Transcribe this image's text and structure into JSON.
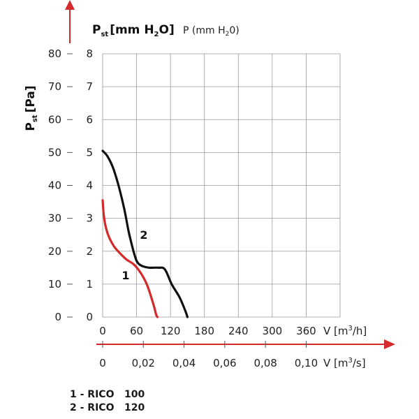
{
  "chart_data": {
    "type": "line",
    "title_pst_mm": "P",
    "title_pst_mm_sub": "st",
    "title_pst_mm_unit": "[mm H",
    "title_pst_mm_sub2": "2",
    "title_pst_mm_unit2": "O]",
    "title_p_mm": "P (mm H",
    "title_p_mm_sub": "2",
    "title_p_mm_end": "0)",
    "ylabel_pa": "P",
    "ylabel_pa_sub": "st",
    "ylabel_pa_unit": "[Pa]",
    "y_pa_ticks": [
      "80",
      "70",
      "60",
      "50",
      "40",
      "30",
      "20",
      "10",
      "0"
    ],
    "y_mm_ticks": [
      "8",
      "7",
      "6",
      "5",
      "4",
      "3",
      "2",
      "1",
      "0"
    ],
    "x_m3h_ticks": [
      "0",
      "60",
      "120",
      "180",
      "240",
      "300",
      "360"
    ],
    "x_m3s_ticks": [
      "0",
      "0,02",
      "0,04",
      "0,06",
      "0,08",
      "0,10"
    ],
    "xlabel_m3h": "V [m",
    "xlabel_m3h_sup": "3",
    "xlabel_m3h_end": "/h]",
    "xlabel_m3s": "V [m",
    "xlabel_m3s_sup": "3",
    "xlabel_m3s_end": "/s]",
    "xlim": [
      0,
      420
    ],
    "ylim": [
      0,
      80
    ],
    "grid": true,
    "colors": {
      "grid": "#9a9a9a",
      "axis_arrow": "#d42a2a"
    },
    "series": [
      {
        "label": "1",
        "color": "#d42a2a",
        "x": [
          0,
          2,
          6,
          12,
          20,
          30,
          42,
          55,
          67,
          78,
          86,
          92,
          95,
          97
        ],
        "y": [
          35.5,
          31,
          27,
          24,
          21.5,
          19.5,
          17.5,
          16,
          13.5,
          10,
          6,
          2.5,
          0.5,
          0
        ]
      },
      {
        "label": "2",
        "color": "#111111",
        "x": [
          0,
          8,
          18,
          28,
          38,
          46,
          53,
          58,
          62,
          70,
          82,
          98,
          110,
          122,
          136,
          146,
          150
        ],
        "y": [
          50.5,
          49,
          45.5,
          40,
          33,
          26,
          21,
          18,
          16.5,
          15.5,
          15,
          15,
          14.5,
          10,
          6,
          2,
          0
        ]
      }
    ]
  },
  "legend": [
    {
      "name": "1 - RICO",
      "value": "100"
    },
    {
      "name": "2 - RICO",
      "value": "120"
    }
  ]
}
